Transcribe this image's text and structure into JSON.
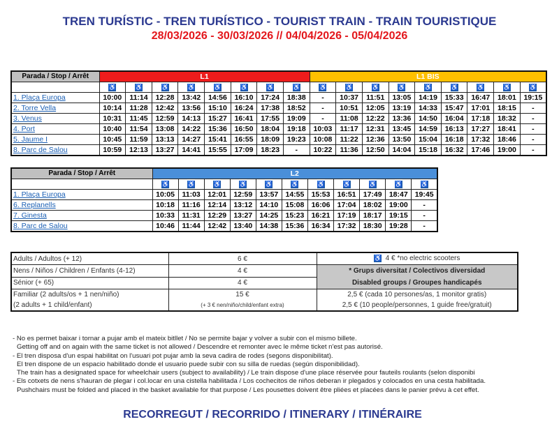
{
  "title": "TREN TURÍSTIC - TREN TURÍSTICO - TOURIST TRAIN - TRAIN TOURISTIQUE",
  "dates": "28/03/2026 - 30/03/2026 // 04/04/2026 - 05/04/2026",
  "stop_header": "Parada / Stop / Arrêt",
  "colors": {
    "l1": "#ee1c1c",
    "l1bis": "#ffc000",
    "l2": "#4a8fd9",
    "title": "#2b3990",
    "dates": "#e3161b"
  },
  "accessibility_icon": "wheelchair-icon",
  "l1": {
    "label": "L1",
    "bis_label": "L1 BIS",
    "l1_cols": 8,
    "bis_cols": 9,
    "rows": [
      {
        "stop": "1. Plaça Europa",
        "times": [
          "10:00",
          "11:14",
          "12:28",
          "13:42",
          "14:56",
          "16:10",
          "17:24",
          "18:38",
          "-",
          "10:37",
          "11:51",
          "13:05",
          "14:19",
          "15:33",
          "16:47",
          "18:01",
          "19:15"
        ]
      },
      {
        "stop": "2. Torre Vella",
        "times": [
          "10:14",
          "11:28",
          "12:42",
          "13:56",
          "15:10",
          "16:24",
          "17:38",
          "18:52",
          "-",
          "10:51",
          "12:05",
          "13:19",
          "14:33",
          "15:47",
          "17:01",
          "18:15",
          "-"
        ]
      },
      {
        "stop": "3. Venus",
        "times": [
          "10:31",
          "11:45",
          "12:59",
          "14:13",
          "15:27",
          "16:41",
          "17:55",
          "19:09",
          "-",
          "11:08",
          "12:22",
          "13:36",
          "14:50",
          "16:04",
          "17:18",
          "18:32",
          "-"
        ]
      },
      {
        "stop": "4. Port",
        "times": [
          "10:40",
          "11:54",
          "13:08",
          "14:22",
          "15:36",
          "16:50",
          "18:04",
          "19:18",
          "10:03",
          "11:17",
          "12:31",
          "13:45",
          "14:59",
          "16:13",
          "17:27",
          "18:41",
          "-"
        ]
      },
      {
        "stop": "5. Jaume I",
        "times": [
          "10:45",
          "11:59",
          "13:13",
          "14:27",
          "15:41",
          "16:55",
          "18:09",
          "19:23",
          "10:08",
          "11:22",
          "12:36",
          "13:50",
          "15:04",
          "16:18",
          "17:32",
          "18:46",
          "-"
        ]
      },
      {
        "stop": "8. Parc de Salou",
        "times": [
          "10:59",
          "12:13",
          "13:27",
          "14:41",
          "15:55",
          "17:09",
          "18:23",
          "-",
          "10:22",
          "11:36",
          "12:50",
          "14:04",
          "15:18",
          "16:32",
          "17:46",
          "19:00",
          "-"
        ]
      }
    ]
  },
  "l2": {
    "label": "L2",
    "cols": 11,
    "rows": [
      {
        "stop": "1. Plaça Europa",
        "times": [
          "10:05",
          "11:03",
          "12:01",
          "12:59",
          "13:57",
          "14:55",
          "15:53",
          "16:51",
          "17:49",
          "18:47",
          "19:45"
        ]
      },
      {
        "stop": "6. Replanells",
        "times": [
          "10:18",
          "11:16",
          "12:14",
          "13:12",
          "14:10",
          "15:08",
          "16:06",
          "17:04",
          "18:02",
          "19:00",
          "-"
        ]
      },
      {
        "stop": "7. Ginesta",
        "times": [
          "10:33",
          "11:31",
          "12:29",
          "13:27",
          "14:25",
          "15:23",
          "16:21",
          "17:19",
          "18:17",
          "19:15",
          "-"
        ]
      },
      {
        "stop": "8. Parc de Salou",
        "times": [
          "10:46",
          "11:44",
          "12:42",
          "13:40",
          "14:38",
          "15:36",
          "16:34",
          "17:32",
          "18:30",
          "19:28",
          "-"
        ]
      }
    ]
  },
  "prices": {
    "adults": "Adults / Adultos (+ 12)",
    "adults_price": "6 €",
    "wheelchair_price": "4 €  *no electric scooters",
    "children": "Nens / Niños / Children / Enfants (4-12)",
    "children_price": "4 €",
    "groups1": "* Grups diversitat  / Colectivos  diversidad",
    "groups2": "Disabled groups / Groupes handicapés",
    "senior": "Sénior (+ 65)",
    "senior_price": "4 €",
    "family1": "Familiar (2 adults/os + 1 nen/niño)",
    "family2": "(2 adults + 1  child/enfant)",
    "family_price": "15 €",
    "family_extra": "(+ 3 € nen/niño/child/enfant extra)",
    "group_price1": "2,5 €  (cada 10 persones/as, 1 monitor gratis)",
    "group_price2": "2,5 €  (10 people/personnes, 1 guide free/gratuit)"
  },
  "notes": [
    "- No es permet baixar i tornar a pujar amb el mateix bitllet / No se permite bajar y volver a subir con el mismo billete.",
    "  Getting off and on again with the same ticket is not allowed / Descendre et remonter avec le même ticket n'est pas autorisé.",
    "- El tren disposa d'un espai habilitat on l'usuari pot pujar amb la seva cadira de rodes (segons disponibilitat).",
    "  El tren dispone de un espacio habilitado donde el usuario puede subir con su silla de ruedas (según disponibilidad).",
    "  The train has a designated space for wheelchair users (subject to availability) / Le train dispose d'une place réservée pour fauteils roulants (selon disponibi",
    "- Els cotxets de nens s'hauran de plegar i col.locar en una cistella habilitada /  Los cochecitos de niños deberan ir plegados y colocados en una cesta habilitada.",
    "  Pushchairs must be folded and placed in the basket available for that purpose / Les pousettes doivent être pliées et placées dans le panier prévu à cet effet."
  ],
  "footer": "RECORREGUT / RECORRIDO / ITINERARY / ITINÉRAIRE"
}
